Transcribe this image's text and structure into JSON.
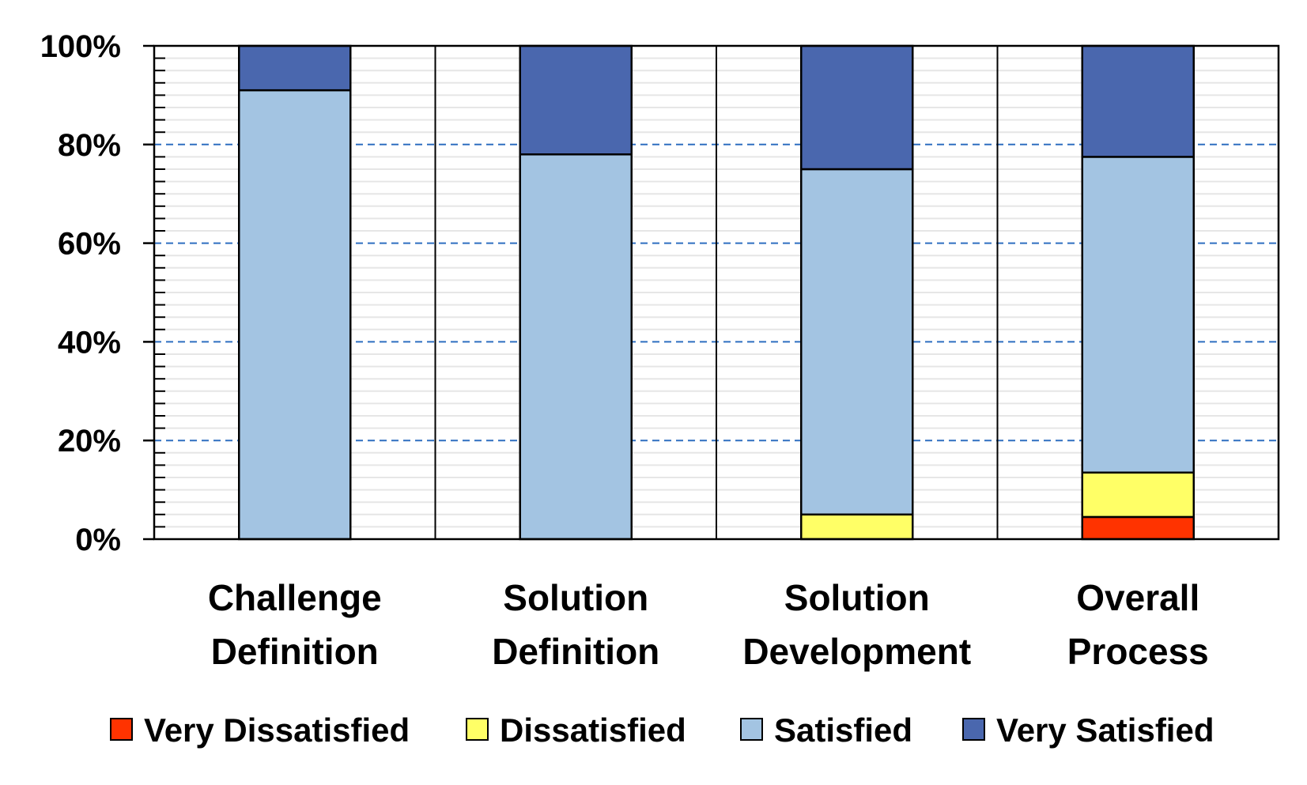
{
  "chart_data": {
    "type": "bar",
    "stacked": true,
    "categories": [
      [
        "Challenge",
        "Definition"
      ],
      [
        "Solution",
        "Definition"
      ],
      [
        "Solution",
        "Development"
      ],
      [
        "Overall",
        "Process"
      ]
    ],
    "series": [
      {
        "name": "Very Dissatisfied",
        "color": "#ff3300",
        "values": [
          0,
          0,
          0,
          4.5
        ]
      },
      {
        "name": "Dissatisfied",
        "color": "#ffff66",
        "values": [
          0,
          0,
          5,
          9
        ]
      },
      {
        "name": "Satisfied",
        "color": "#a3c4e2",
        "values": [
          91,
          78,
          70,
          64
        ]
      },
      {
        "name": "Very Satisfied",
        "color": "#4a67ae",
        "values": [
          9,
          22,
          25,
          22.5
        ]
      }
    ],
    "ylim": [
      0,
      100
    ],
    "yticks": [
      "0%",
      "20%",
      "40%",
      "60%",
      "80%",
      "100%"
    ],
    "ytick_values": [
      0,
      20,
      40,
      60,
      80,
      100
    ],
    "major_grid": "dashed",
    "minor_grid": true,
    "legend_position": "bottom",
    "colors": {
      "major_grid": "#2e6fc0",
      "minor_grid": "#e6e6e6",
      "axis": "#000000"
    }
  }
}
